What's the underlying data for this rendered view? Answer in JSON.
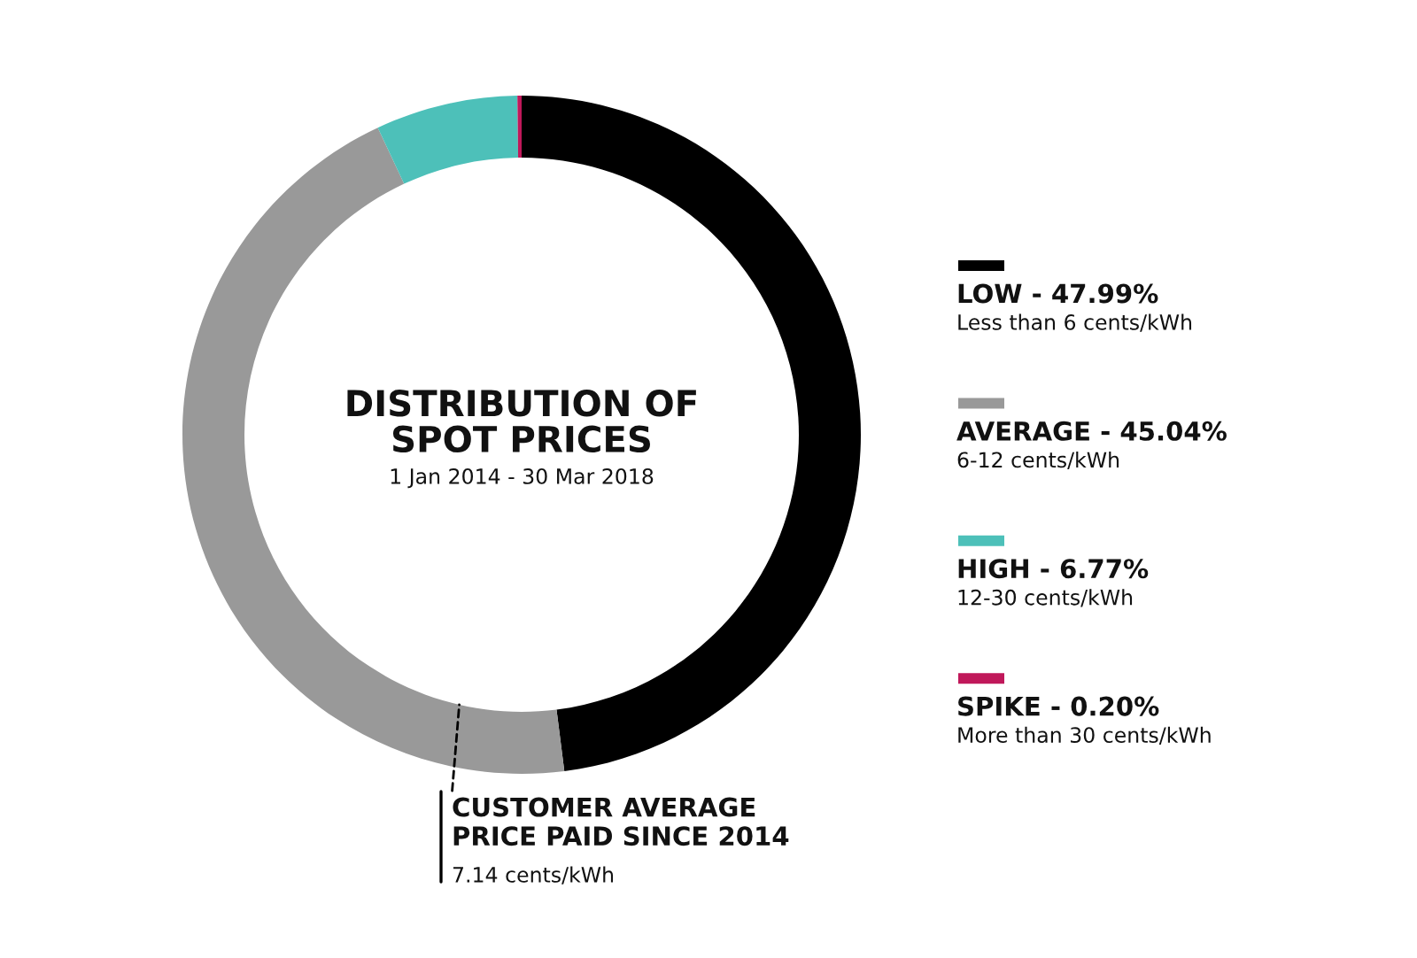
{
  "chart_data": {
    "type": "donut",
    "title": "DISTRIBUTION OF\nSPOT PRICES",
    "subtitle": "1 Jan 2014 - 30 Mar 2018",
    "categories": [
      "LOW",
      "AVERAGE",
      "HIGH",
      "SPIKE"
    ],
    "values": [
      47.99,
      45.04,
      6.77,
      0.2
    ],
    "value_labels": [
      "47.99%",
      "45.04%",
      "6.77%",
      "0.20%"
    ],
    "colors": [
      "#000000",
      "#999999",
      "#4dc0b9",
      "#c0185a"
    ],
    "legend": "right",
    "annotations": [
      "Less than 6 cents/kWh",
      "6-12 cents/kWh",
      "12-30 cents/kWh",
      "More than 30 cents/kWh",
      "CUSTOMER AVERAGE\nPRICE PAID SINCE 2014",
      "7.14 cents/kWh"
    ]
  }
}
